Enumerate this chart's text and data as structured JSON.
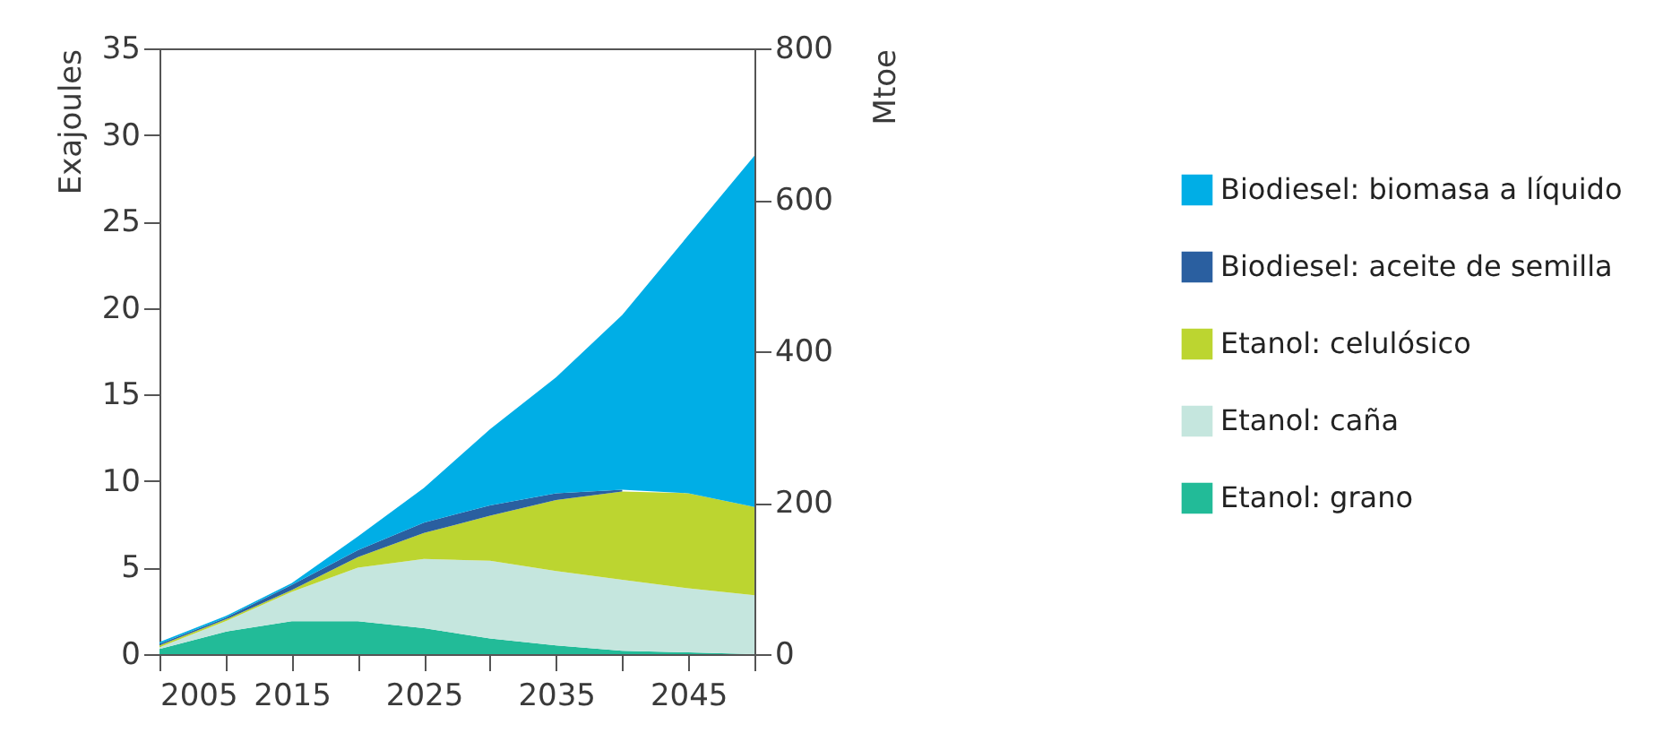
{
  "chart_data": {
    "type": "area",
    "stacked": true,
    "x": [
      2005,
      2010,
      2015,
      2020,
      2025,
      2030,
      2035,
      2040,
      2045,
      2050
    ],
    "series": [
      {
        "name": "Etanol: grano",
        "color": "#22bb98",
        "values": [
          0.3,
          1.3,
          1.9,
          1.9,
          1.5,
          0.9,
          0.5,
          0.2,
          0.1,
          0
        ]
      },
      {
        "name": "Etanol: caña",
        "color": "#c5e6de",
        "values": [
          0.1,
          0.6,
          1.7,
          3.1,
          4.0,
          4.5,
          4.3,
          4.1,
          3.7,
          3.4
        ]
      },
      {
        "name": "Etanol: celulósico",
        "color": "#bcd530",
        "values": [
          0.1,
          0.1,
          0.1,
          0.6,
          1.5,
          2.6,
          4.1,
          5.1,
          5.5,
          5.1
        ]
      },
      {
        "name": "Biodiesel: aceite de semilla",
        "color": "#2a5fa0",
        "values": [
          0.1,
          0.1,
          0.3,
          0.4,
          0.6,
          0.6,
          0.4,
          0.1,
          null,
          null
        ]
      },
      {
        "name": "Biodiesel: biomasa a líquido",
        "color": "#00aee6",
        "values": [
          0.1,
          0.1,
          0.1,
          0.8,
          2.0,
          4.4,
          6.7,
          10.1,
          14.9,
          20.3
        ]
      }
    ],
    "ylabel": "Exajoules",
    "y2label": "Mtoe",
    "xlim": [
      2005,
      2050
    ],
    "xticks": [
      2005,
      {
        "value": 2010,
        "label": null
      },
      2015,
      {
        "value": 2020,
        "label": null
      },
      2025,
      {
        "value": 2030,
        "label": null
      },
      2035,
      {
        "value": 2040,
        "label": null
      },
      2045,
      {
        "value": 2050,
        "label": null
      }
    ],
    "ylim": [
      0,
      35
    ],
    "yticks": [
      0,
      5,
      10,
      15,
      20,
      25,
      30,
      35
    ],
    "y2lim": [
      0,
      800
    ],
    "y2ticks": [
      0,
      200,
      400,
      600,
      800
    ],
    "legend": "right"
  }
}
